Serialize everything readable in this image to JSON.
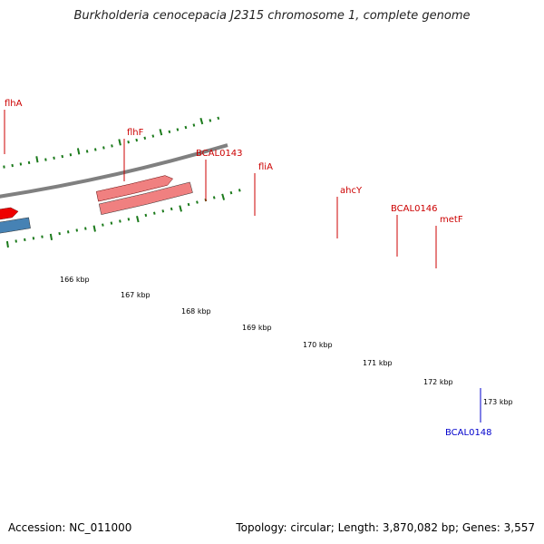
{
  "title": "Burkholderia cenocepacia J2315 chromosome 1, complete genome",
  "footer": {
    "accession": "Accession: NC_011000",
    "summary": "Topology: circular; Length: 3,870,082 bp; Genes: 3,557"
  },
  "colors": {
    "label_red": "#cc0000",
    "label_blue": "#0000cc",
    "tick": "#1b7a1b",
    "backbone": "#808080",
    "cds": "#ee0000"
  },
  "scale_labels": [
    "166 kbp",
    "167 kbp",
    "168 kbp",
    "169 kbp",
    "170 kbp",
    "171 kbp",
    "172 kbp",
    "173 kbp"
  ],
  "genes": [
    {
      "name": "flhA",
      "label_color": "red",
      "fill": "#adff2f"
    },
    {
      "name": "flhF",
      "label_color": "red",
      "fill": "#228b22"
    },
    {
      "name": "BCAL0143",
      "label_color": "red",
      "fill": "#f0e68c"
    },
    {
      "name": "fliA",
      "label_color": "red",
      "fill": "#ff8c00"
    },
    {
      "name": "ahcY",
      "label_color": "red",
      "fill": "#0000ee"
    },
    {
      "name": "BCAL0146",
      "label_color": "red",
      "fill": "#696969"
    },
    {
      "name": "metF",
      "label_color": "red",
      "fill": "#4682b4"
    },
    {
      "name": "BCAL0148",
      "label_color": "blue",
      "fill": "#f08080"
    }
  ]
}
